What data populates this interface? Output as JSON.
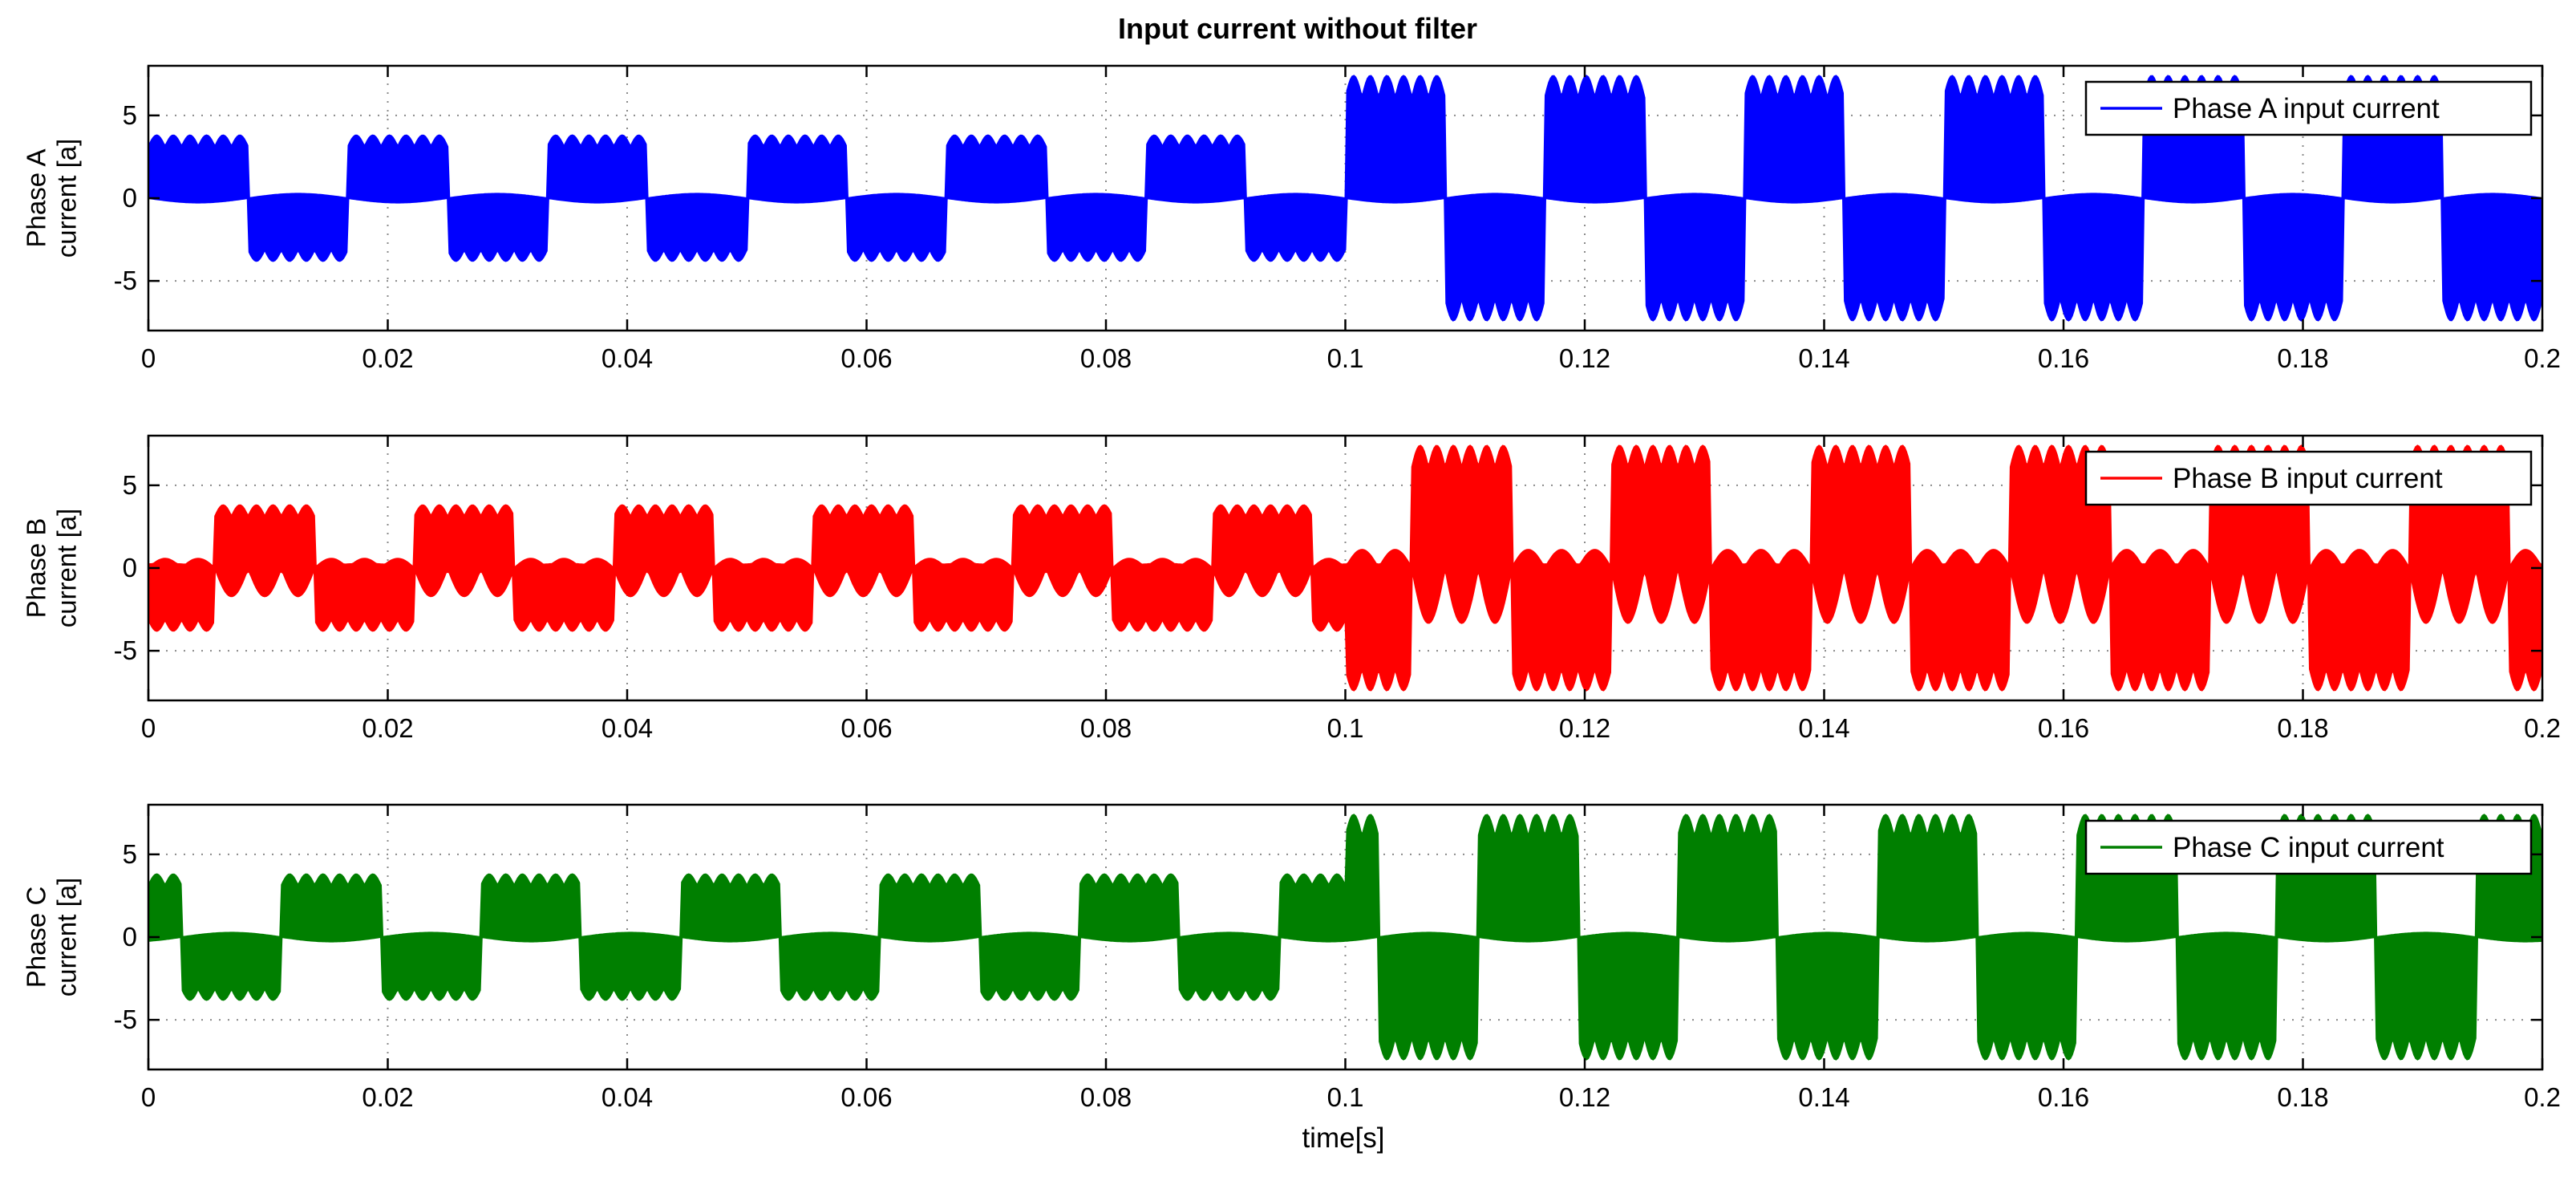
{
  "chart_data": [
    {
      "type": "line",
      "title": "Input current without filter",
      "xlabel": "",
      "ylabel": [
        "Phase A",
        "current  [a]"
      ],
      "xlim": [
        0,
        0.2
      ],
      "ylim": [
        -8,
        8
      ],
      "xticks": [
        0,
        0.02,
        0.04,
        0.06,
        0.08,
        0.1,
        0.12,
        0.14,
        0.16,
        0.18,
        0.2
      ],
      "xtick_labels": [
        "0",
        "0.02",
        "0.04",
        "0.06",
        "0.08",
        "0.1",
        "0.12",
        "0.14",
        "0.16",
        "0.18",
        "0.2"
      ],
      "yticks": [
        -5,
        0,
        5
      ],
      "ytick_labels": [
        "-5",
        "0",
        "5"
      ],
      "grid": true,
      "legend": {
        "position": "top-right",
        "entries": [
          "Phase A input current"
        ]
      },
      "series": [
        {
          "name": "Phase A input current",
          "color": "#0000ff",
          "style": "pwm-envelope",
          "fundamental_hz": 60,
          "phase_offset_deg": 0,
          "segments": [
            {
              "t_start": 0,
              "t_end": 0.1,
              "peak": 3.8
            },
            {
              "t_start": 0.1,
              "t_end": 0.2,
              "peak": 7.4
            }
          ]
        }
      ]
    },
    {
      "type": "line",
      "title": "",
      "xlabel": "",
      "ylabel": [
        "Phase B",
        "current  [a]"
      ],
      "xlim": [
        0,
        0.2
      ],
      "ylim": [
        -8,
        8
      ],
      "xticks": [
        0,
        0.02,
        0.04,
        0.06,
        0.08,
        0.1,
        0.12,
        0.14,
        0.16,
        0.18,
        0.2
      ],
      "xtick_labels": [
        "0",
        "0.02",
        "0.04",
        "0.06",
        "0.08",
        "0.1",
        "0.12",
        "0.14",
        "0.16",
        "0.18",
        "0.2"
      ],
      "yticks": [
        -5,
        0,
        5
      ],
      "ytick_labels": [
        "-5",
        "0",
        "5"
      ],
      "grid": true,
      "legend": {
        "position": "top-right",
        "entries": [
          "Phase B input current"
        ]
      },
      "series": [
        {
          "name": "Phase B input current",
          "color": "#ff0000",
          "style": "pwm-envelope-dense",
          "fundamental_hz": 60,
          "phase_offset_deg": -120,
          "segments": [
            {
              "t_start": 0,
              "t_end": 0.1,
              "peak": 3.8
            },
            {
              "t_start": 0.1,
              "t_end": 0.2,
              "peak": 7.4
            }
          ]
        }
      ]
    },
    {
      "type": "line",
      "title": "",
      "xlabel": "time[s]",
      "ylabel": [
        "Phase C",
        "current  [a]"
      ],
      "xlim": [
        0,
        0.2
      ],
      "ylim": [
        -8,
        8
      ],
      "xticks": [
        0,
        0.02,
        0.04,
        0.06,
        0.08,
        0.1,
        0.12,
        0.14,
        0.16,
        0.18,
        0.2
      ],
      "xtick_labels": [
        "0",
        "0.02",
        "0.04",
        "0.06",
        "0.08",
        "0.1",
        "0.12",
        "0.14",
        "0.16",
        "0.18",
        "0.2"
      ],
      "yticks": [
        -5,
        0,
        5
      ],
      "ytick_labels": [
        "-5",
        "0",
        "5"
      ],
      "grid": true,
      "legend": {
        "position": "top-right",
        "entries": [
          "Phase C input current"
        ]
      },
      "series": [
        {
          "name": "Phase C input current",
          "color": "#007f00",
          "style": "pwm-envelope",
          "fundamental_hz": 60,
          "phase_offset_deg": 120,
          "segments": [
            {
              "t_start": 0,
              "t_end": 0.1,
              "peak": 3.8
            },
            {
              "t_start": 0.1,
              "t_end": 0.2,
              "peak": 7.4
            }
          ]
        }
      ]
    }
  ]
}
